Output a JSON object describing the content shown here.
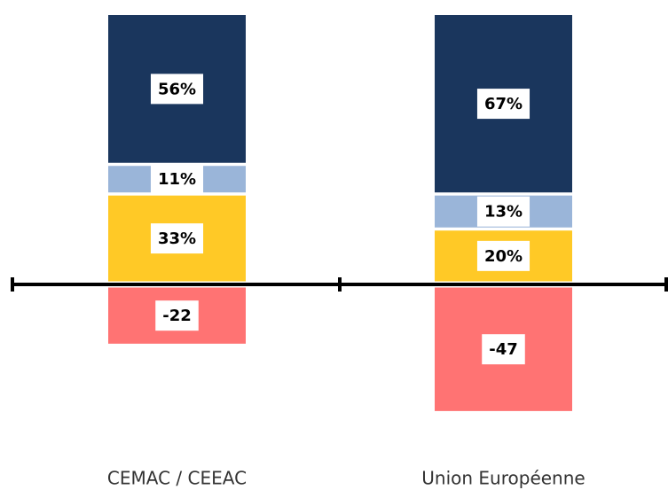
{
  "chart_data": {
    "type": "stacked_bar",
    "categories": [
      "CEMAC / CEEAC",
      "Union Européenne"
    ],
    "series": [
      {
        "color": "#ffc926",
        "values": [
          33,
          20
        ],
        "value_labels": [
          "33%",
          "20%"
        ]
      },
      {
        "color": "#9ab5d9",
        "values": [
          11,
          13
        ],
        "value_labels": [
          "11%",
          "13%"
        ]
      },
      {
        "color": "#1a365d",
        "values": [
          56,
          67
        ],
        "value_labels": [
          "56%",
          "67%"
        ]
      },
      {
        "color": "#ff7373",
        "values": [
          -22,
          -47
        ]
      }
    ]
  }
}
